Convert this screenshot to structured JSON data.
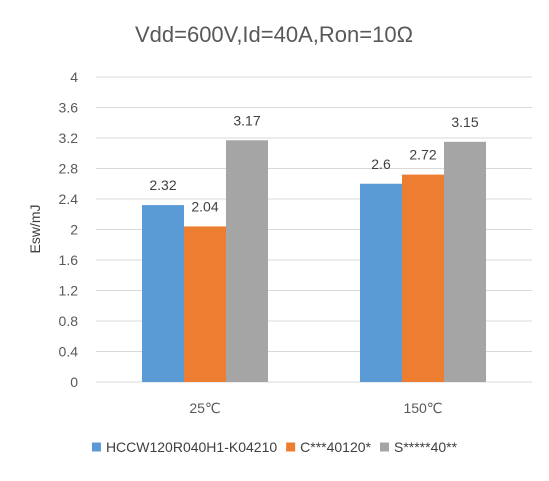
{
  "chart_data": {
    "type": "bar",
    "title": "Vdd=600V,Id=40A,Ron=10Ω",
    "xlabel": "",
    "ylabel": "Esw/mJ",
    "categories": [
      "25℃",
      "150℃"
    ],
    "ylim": [
      0,
      4
    ],
    "yticks": [
      0,
      0.4,
      0.8,
      1.2,
      1.6,
      2,
      2.4,
      2.8,
      3.2,
      3.6,
      4
    ],
    "ytick_labels": [
      "0",
      "0.4",
      "0.8",
      "1.2",
      "1.6",
      "2",
      "2.4",
      "2.8",
      "3.2",
      "3.6",
      "4"
    ],
    "grid": true,
    "legend_position": "bottom",
    "series": [
      {
        "name": "HCCW120R040H1-K04210",
        "values": [
          2.32,
          2.6
        ],
        "labels": [
          "2.32",
          "2.6"
        ],
        "color": "#5b9bd5"
      },
      {
        "name": "C***40120*",
        "values": [
          2.04,
          2.72
        ],
        "labels": [
          "2.04",
          "2.72"
        ],
        "color": "#ed7d31"
      },
      {
        "name": "S*****40**",
        "values": [
          3.17,
          3.15
        ],
        "labels": [
          "3.17",
          "3.15"
        ],
        "color": "#a5a5a5"
      }
    ]
  }
}
